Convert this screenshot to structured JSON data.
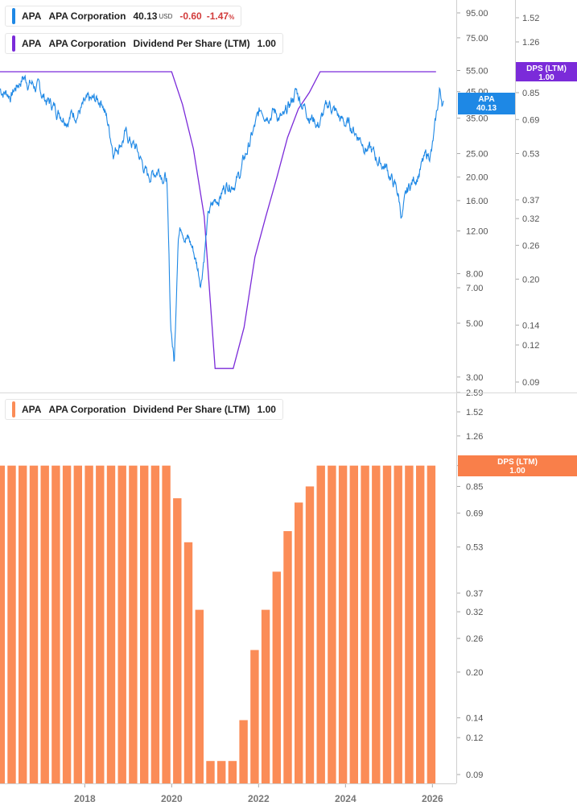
{
  "legend": {
    "price": {
      "ticker": "APA",
      "company": "APA Corporation",
      "price": "40.13",
      "currency": "USD",
      "change": "-0.60",
      "change_pct": "-1.47",
      "pct_sign": "%"
    },
    "dps_top": {
      "ticker": "APA",
      "company": "APA Corporation",
      "metric": "Dividend Per Share (LTM)",
      "value": "1.00"
    },
    "dps_bottom": {
      "ticker": "APA",
      "company": "APA Corporation",
      "metric": "Dividend Per Share (LTM)",
      "value": "1.00"
    }
  },
  "colors": {
    "price": "#1e88e5",
    "dps_line": "#7b2bd9",
    "bars": "#fb8c57",
    "bars_tag": "#f97f4a",
    "axis_text": "#555555",
    "grid": "#e5e5e5"
  },
  "chart_data": [
    {
      "type": "line",
      "title": "",
      "scale": "log",
      "x_range": [
        "2016-06",
        "2026-06"
      ],
      "y_left_ticks": [
        "95.00",
        "75.00",
        "55.00",
        "45.00",
        "35.00",
        "25.00",
        "20.00",
        "16.00",
        "12.00",
        "8.00",
        "7.00",
        "5.00",
        "3.00",
        "2.59"
      ],
      "y_right_ticks": [
        "1.52",
        "1.26",
        "0.85",
        "0.69",
        "0.53",
        "0.37",
        "0.32",
        "0.26",
        "0.20",
        "0.14",
        "0.12",
        "0.09"
      ],
      "series": [
        {
          "name": "APA",
          "axis": "left",
          "points": [
            [
              "2016-06",
              46
            ],
            [
              "2016-09",
              44
            ],
            [
              "2016-12",
              52
            ],
            [
              "2017-03",
              48
            ],
            [
              "2017-06",
              42
            ],
            [
              "2017-09",
              38
            ],
            [
              "2017-12",
              36
            ],
            [
              "2018-03",
              38
            ],
            [
              "2018-06",
              40
            ],
            [
              "2018-09",
              42
            ],
            [
              "2018-12",
              26
            ],
            [
              "2019-03",
              30
            ],
            [
              "2019-06",
              26
            ],
            [
              "2019-09",
              20
            ],
            [
              "2019-12",
              22
            ],
            [
              "2020-02",
              20
            ],
            [
              "2020-03",
              5
            ],
            [
              "2020-04",
              3.4
            ],
            [
              "2020-05",
              12
            ],
            [
              "2020-06",
              13
            ],
            [
              "2020-09",
              10
            ],
            [
              "2020-11",
              7.5
            ],
            [
              "2021-01",
              14
            ],
            [
              "2021-03",
              16
            ],
            [
              "2021-06",
              19
            ],
            [
              "2021-09",
              20
            ],
            [
              "2021-12",
              28
            ],
            [
              "2022-03",
              38
            ],
            [
              "2022-06",
              38
            ],
            [
              "2022-09",
              34
            ],
            [
              "2022-12",
              45
            ],
            [
              "2023-03",
              38
            ],
            [
              "2023-06",
              33
            ],
            [
              "2023-09",
              40
            ],
            [
              "2023-12",
              34
            ],
            [
              "2024-03",
              32
            ],
            [
              "2024-06",
              28
            ],
            [
              "2024-09",
              24
            ],
            [
              "2024-12",
              22
            ],
            [
              "2025-03",
              17
            ],
            [
              "2025-04",
              13.8
            ],
            [
              "2025-06",
              18
            ],
            [
              "2025-09",
              22
            ],
            [
              "2025-12",
              26
            ],
            [
              "2026-01",
              33
            ],
            [
              "2026-02",
              45
            ],
            [
              "2026-03",
              40.13
            ]
          ]
        },
        {
          "name": "DPS (LTM)",
          "axis": "right",
          "points": [
            [
              "2016-06",
              1.0
            ],
            [
              "2020-01",
              1.0
            ],
            [
              "2020-04",
              0.775
            ],
            [
              "2020-07",
              0.55
            ],
            [
              "2020-10",
              0.325
            ],
            [
              "2021-01",
              0.1
            ],
            [
              "2021-06",
              0.1
            ],
            [
              "2021-09",
              0.1375
            ],
            [
              "2021-12",
              0.2375
            ],
            [
              "2022-03",
              0.325
            ],
            [
              "2022-06",
              0.4375
            ],
            [
              "2022-09",
              0.6
            ],
            [
              "2022-12",
              0.75
            ],
            [
              "2023-03",
              0.85
            ],
            [
              "2023-06",
              1.0
            ],
            [
              "2026-02",
              1.0
            ]
          ]
        }
      ]
    },
    {
      "type": "bar",
      "title": "",
      "scale": "log",
      "name": "Dividend Per Share (LTM)",
      "x_ticks": [
        "2018",
        "2020",
        "2022",
        "2024",
        "2026"
      ],
      "y_ticks": [
        "1.52",
        "1.26",
        "1.00",
        "0.85",
        "0.69",
        "0.53",
        "0.37",
        "0.32",
        "0.26",
        "0.20",
        "0.14",
        "0.12",
        "0.09"
      ],
      "quarters": [
        "2016-Q2",
        "2016-Q3",
        "2016-Q4",
        "2017-Q1",
        "2017-Q2",
        "2017-Q3",
        "2017-Q4",
        "2018-Q1",
        "2018-Q2",
        "2018-Q3",
        "2018-Q4",
        "2019-Q1",
        "2019-Q2",
        "2019-Q3",
        "2019-Q4",
        "2020-Q1",
        "2020-Q2",
        "2020-Q3",
        "2020-Q4",
        "2021-Q1",
        "2021-Q2",
        "2021-Q3",
        "2021-Q4",
        "2022-Q1",
        "2022-Q2",
        "2022-Q3",
        "2022-Q4",
        "2023-Q1",
        "2023-Q2",
        "2023-Q3",
        "2023-Q4",
        "2024-Q1",
        "2024-Q2",
        "2024-Q3",
        "2024-Q4",
        "2025-Q1",
        "2025-Q2",
        "2025-Q3",
        "2025-Q4",
        "2026-Q1"
      ],
      "values": [
        1.0,
        1.0,
        1.0,
        1.0,
        1.0,
        1.0,
        1.0,
        1.0,
        1.0,
        1.0,
        1.0,
        1.0,
        1.0,
        1.0,
        1.0,
        1.0,
        0.775,
        0.55,
        0.325,
        0.1,
        0.1,
        0.1,
        0.1375,
        0.2375,
        0.325,
        0.4375,
        0.6,
        0.75,
        0.85,
        1.0,
        1.0,
        1.0,
        1.0,
        1.0,
        1.0,
        1.0,
        1.0,
        1.0,
        1.0,
        1.0
      ]
    }
  ],
  "tags": {
    "dps_top": {
      "label": "DPS (LTM)",
      "value": "1.00"
    },
    "apa": {
      "label": "APA",
      "value": "40.13"
    },
    "dps_bottom": {
      "label": "DPS (LTM)",
      "value": "1.00"
    },
    "dps_bottom_tick": "1.00"
  }
}
